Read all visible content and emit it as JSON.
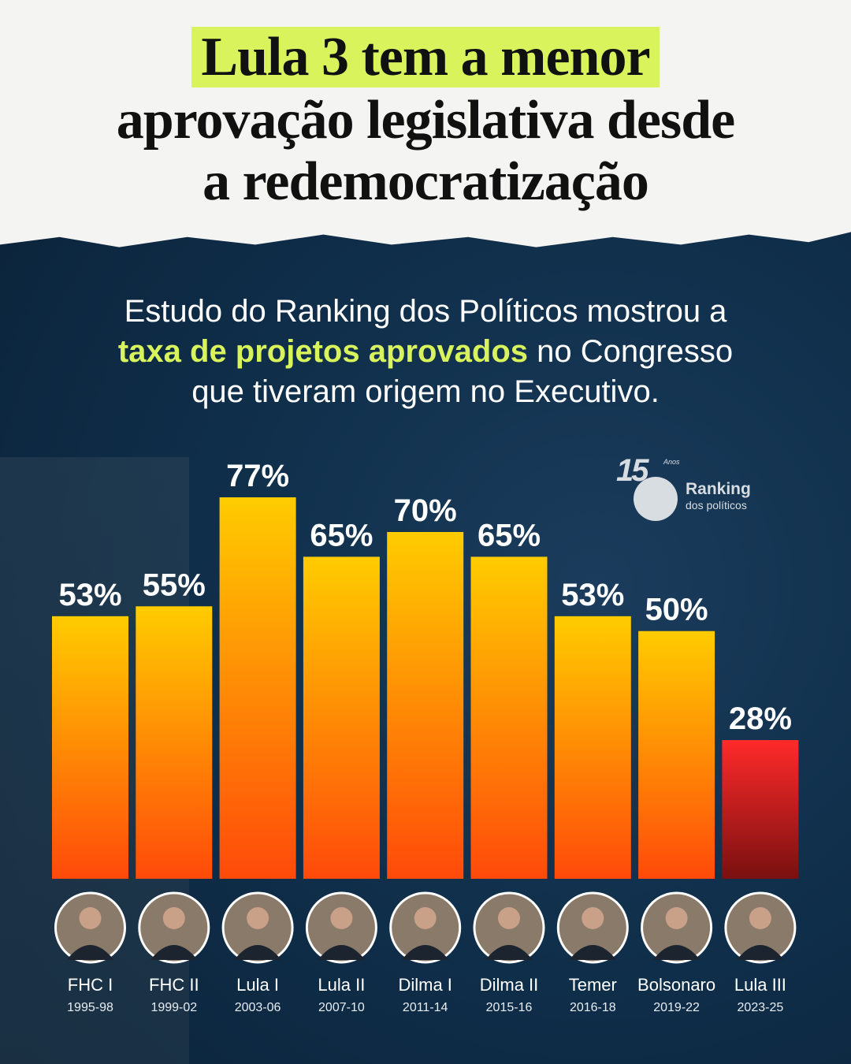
{
  "title": {
    "highlight": "Lula 3 tem a menor",
    "line2": "aprovação legislativa desde",
    "line3": "a redemocratização"
  },
  "subtitle": {
    "part1": "Estudo do Ranking dos Políticos mostrou a",
    "highlight": "taxa de projetos aprovados",
    "part2": " no Congresso",
    "part3": "que tiveram origem no Executivo."
  },
  "logo": {
    "number": "15",
    "anos": "Anos",
    "name": "Ranking",
    "tagline": "dos políticos"
  },
  "colors": {
    "highlight": "#d8f35c",
    "bar_top": "#ffcc00",
    "bar_bottom": "#ff4a0a",
    "last_bar_top": "#ff2a2a",
    "last_bar_bottom": "#7a1010"
  },
  "chart_data": {
    "type": "bar",
    "categories": [
      "FHC I",
      "FHC II",
      "Lula I",
      "Lula II",
      "Dilma I",
      "Dilma II",
      "Temer",
      "Bolsonaro",
      "Lula III"
    ],
    "periods": [
      "1995-98",
      "1999-02",
      "2003-06",
      "2007-10",
      "2011-14",
      "2015-16",
      "2016-18",
      "2019-22",
      "2023-25"
    ],
    "values": [
      53,
      55,
      77,
      65,
      70,
      65,
      53,
      50,
      28
    ],
    "labels": [
      "53%",
      "55%",
      "77%",
      "65%",
      "70%",
      "65%",
      "53%",
      "50%",
      "28%"
    ],
    "highlighted_category": "Lula III",
    "grid": false
  }
}
